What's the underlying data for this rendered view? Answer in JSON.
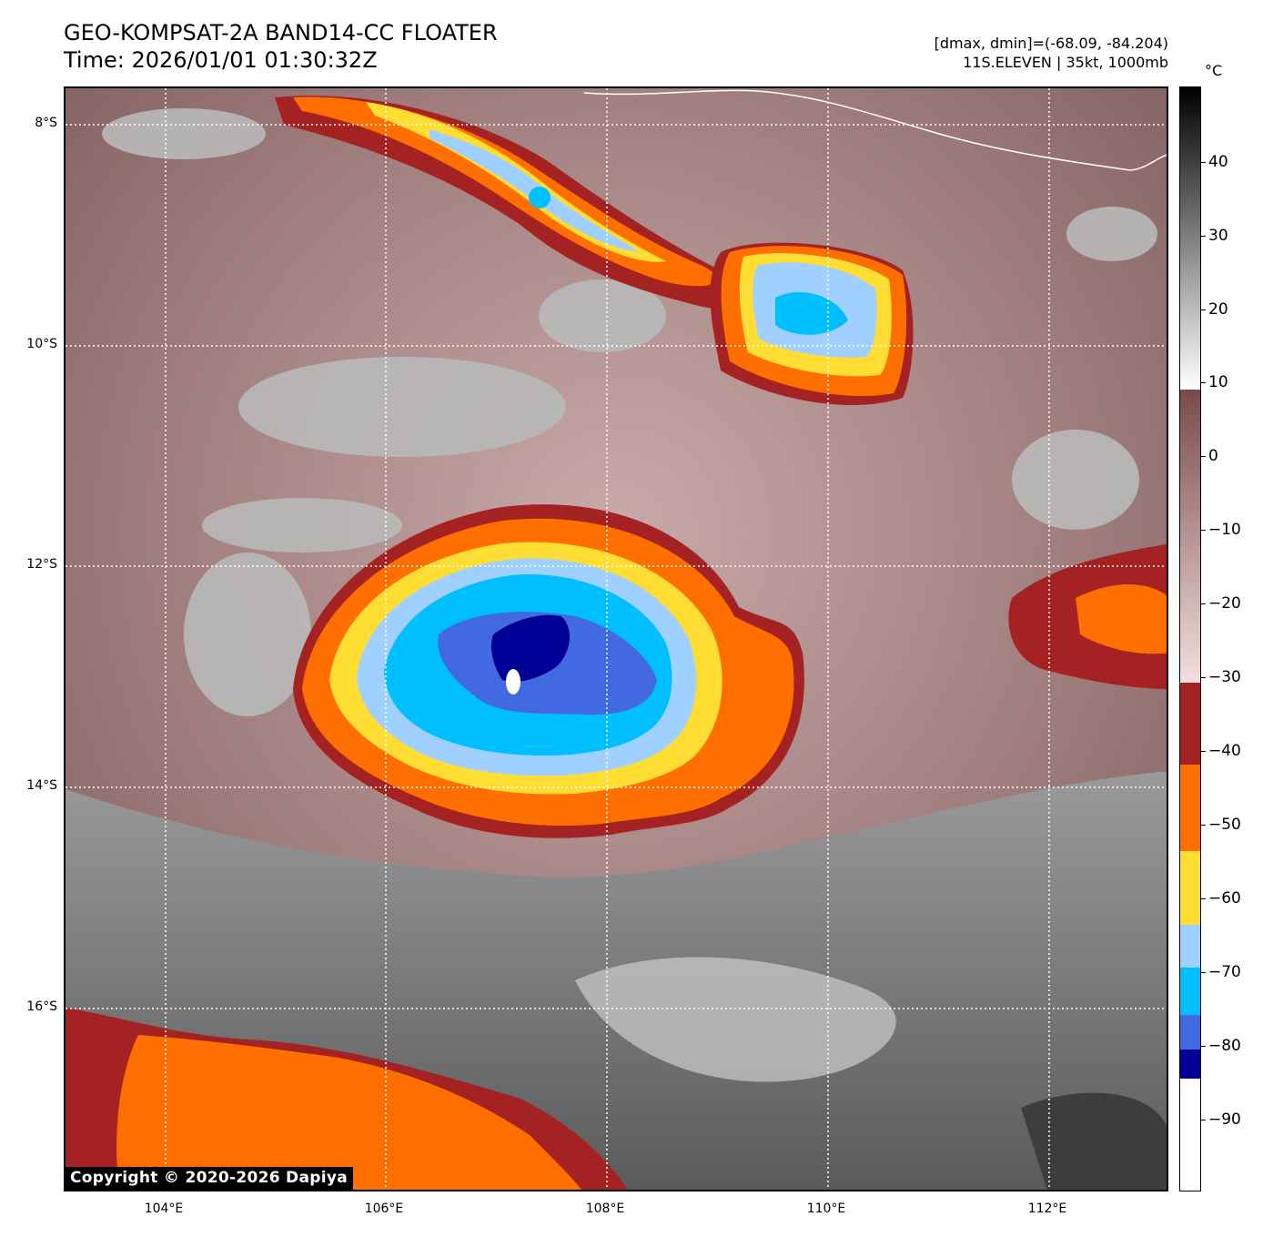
{
  "header": {
    "title_line1": "GEO-KOMPSAT-2A BAND14-CC FLOATER",
    "title_line2": "Time: 2026/01/01 01:30:32Z",
    "info_line1": "[dmax, dmin]=(-68.09, -84.204)",
    "info_line2": "11S.ELEVEN | 35kt, 1000mb"
  },
  "map": {
    "lat_labels": [
      "8°S",
      "10°S",
      "12°S",
      "14°S",
      "16°S"
    ],
    "lon_labels": [
      "104°E",
      "106°E",
      "108°E",
      "110°E",
      "112°E"
    ],
    "copyright": "Copyright © 2020-2026 Dapiya"
  },
  "colorbar": {
    "unit": "°C",
    "tick_labels": [
      "40",
      "30",
      "20",
      "10",
      "0",
      "−10",
      "−20",
      "−30",
      "−40",
      "−50",
      "−60",
      "−70",
      "−80",
      "−90"
    ],
    "colors": {
      "white_cold": "#ffffff",
      "dark_navy": "#000096",
      "royal_blue": "#4169e1",
      "deep_sky": "#00bfff",
      "light_blue": "#a0d0ff",
      "yellow": "#ffdd33",
      "orange": "#ff6f00",
      "dark_red": "#a52222",
      "brown_pink": "#7a4a4a",
      "gray_warm": "#000000"
    }
  }
}
